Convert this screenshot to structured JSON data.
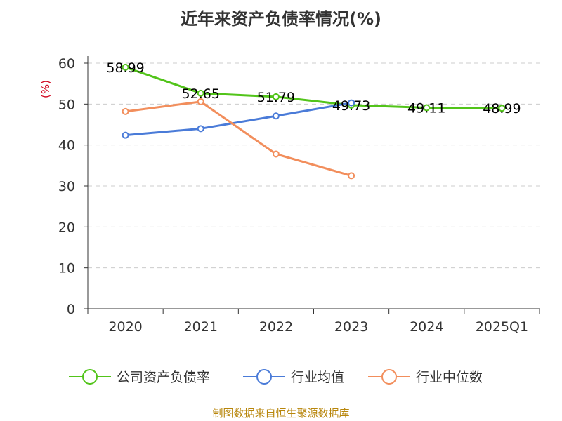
{
  "chart_data": {
    "type": "line",
    "title": "近年来资产负债率情况(%)",
    "ylabel": "(%)",
    "xlabel": "",
    "categories": [
      "2020",
      "2021",
      "2022",
      "2023",
      "2024",
      "2025Q1"
    ],
    "ylim": [
      0,
      60
    ],
    "yticks": [
      0,
      10,
      20,
      30,
      40,
      50,
      60
    ],
    "grid": true,
    "legend_position": "bottom",
    "series": [
      {
        "name": "公司资产负债率",
        "color": "#52c41a",
        "values": [
          58.99,
          52.65,
          51.79,
          49.73,
          49.11,
          48.99
        ],
        "labels": [
          "58.99",
          "52.65",
          "51.79",
          "49.73",
          "49.11",
          "48.99"
        ]
      },
      {
        "name": "行业均值",
        "color": "#4a7bd8",
        "values": [
          42.4,
          44.0,
          47.1,
          50.3,
          null,
          null
        ],
        "labels": []
      },
      {
        "name": "行业中位数",
        "color": "#f28e5c",
        "values": [
          48.2,
          50.6,
          37.8,
          32.5,
          null,
          null
        ],
        "labels": []
      }
    ]
  },
  "source_text": "制图数据来自恒生聚源数据库"
}
